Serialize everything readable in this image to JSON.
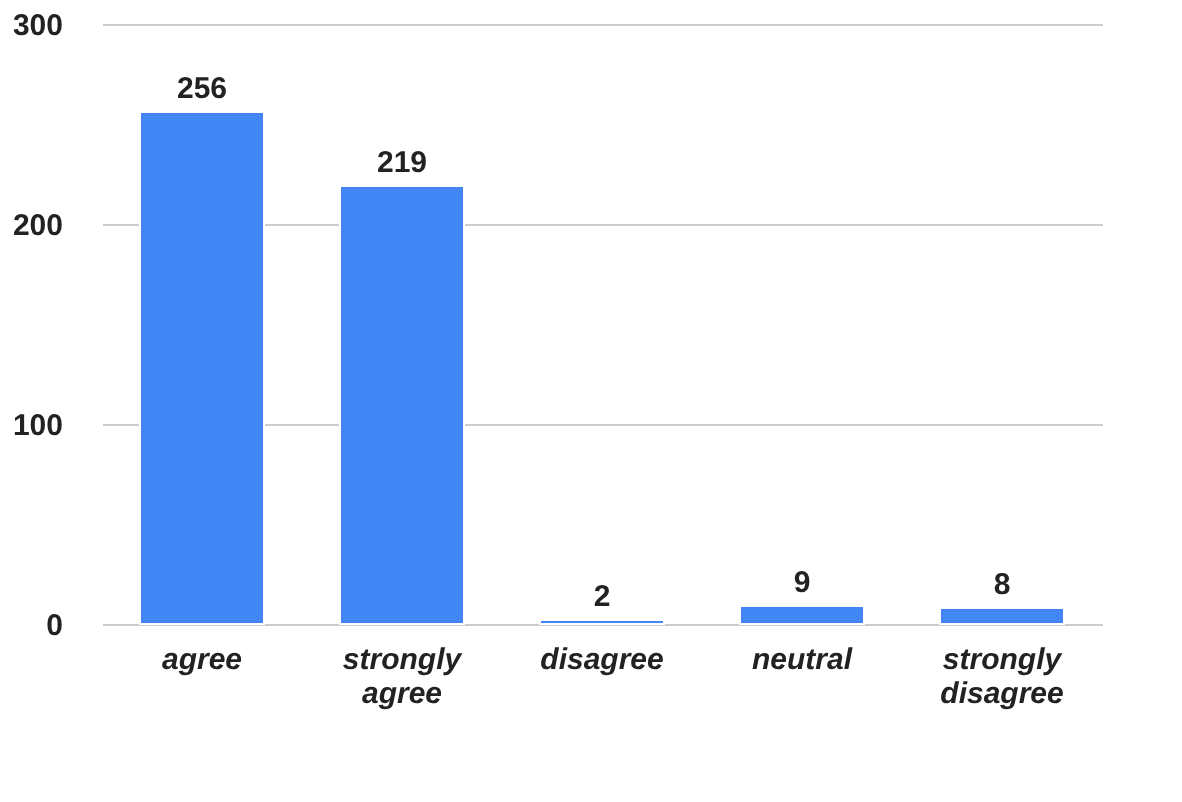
{
  "chart_data": {
    "type": "bar",
    "categories": [
      "agree",
      "strongly agree",
      "disagree",
      "neutral",
      "strongly disagree"
    ],
    "values": [
      256,
      219,
      2,
      9,
      8
    ],
    "color": "#4285f4",
    "ylim": [
      0,
      300
    ],
    "yticks": [
      0,
      100,
      200,
      300
    ],
    "grid": "y",
    "data_labels": true
  }
}
